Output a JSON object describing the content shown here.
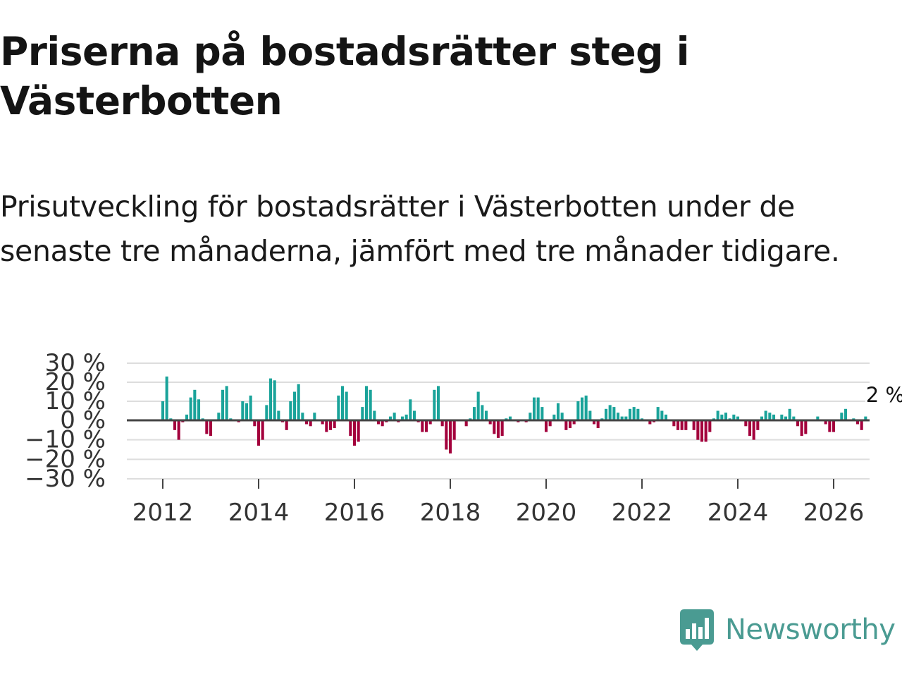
{
  "title": "Priserna på bostadsrätter steg i Västerbotten",
  "subtitle": "Prisutveckling för bostadsrätter i Västerbotten under de senaste tre månaderna, jämfört med tre månader tidigare.",
  "logo": {
    "text": "Newsworthy",
    "color": "#4a9b92",
    "icon": "newsworthy-bar-chart-icon"
  },
  "colors": {
    "positive": "#1aa39a",
    "negative": "#a3003c",
    "grid": "#dddddd",
    "zero_line": "#444444",
    "text": "#333333"
  },
  "chart_data": {
    "type": "bar",
    "title": "Priserna på bostadsrätter steg i Västerbotten",
    "ylabel": "",
    "xlabel": "",
    "ylim": [
      -30,
      30
    ],
    "y_ticks": [
      30,
      20,
      10,
      0,
      -10,
      -20,
      -30
    ],
    "y_tick_labels": [
      "30 %",
      "20 %",
      "10 %",
      "0 %",
      "−10 %",
      "−20 %",
      "−30 %"
    ],
    "x_range": [
      2011.25,
      2026.75
    ],
    "x_ticks": [
      2012,
      2014,
      2016,
      2018,
      2020,
      2022,
      2024,
      2026
    ],
    "x_tick_labels": [
      "2012",
      "2014",
      "2016",
      "2018",
      "2020",
      "2022",
      "2024",
      "2026"
    ],
    "start_year": 2012,
    "start_month": 1,
    "last_value_label": "2 %",
    "values": [
      10,
      23,
      1,
      -5,
      -10,
      -1,
      3,
      12,
      16,
      11,
      1,
      -7,
      -8,
      0,
      4,
      16,
      18,
      1,
      0,
      -1,
      10,
      9,
      13,
      -3,
      -13,
      -10,
      8,
      22,
      21,
      5,
      -1,
      -5,
      10,
      15,
      19,
      4,
      -2,
      -3,
      4,
      0,
      -2,
      -6,
      -5,
      -4,
      13,
      18,
      15,
      -8,
      -13,
      -11,
      7,
      18,
      16,
      5,
      -2,
      -3,
      -1,
      2,
      4,
      -1,
      2,
      3,
      11,
      5,
      -1,
      -6,
      -6,
      -2,
      16,
      18,
      -3,
      -15,
      -17,
      -10,
      0,
      0,
      -3,
      1,
      7,
      15,
      8,
      5,
      -2,
      -7,
      -9,
      -8,
      1,
      2,
      0,
      -1,
      0,
      -1,
      4,
      12,
      12,
      7,
      -6,
      -3,
      3,
      9,
      4,
      -5,
      -4,
      -2,
      10,
      12,
      13,
      5,
      -2,
      -4,
      1,
      6,
      8,
      7,
      4,
      2,
      2,
      6,
      7,
      6,
      1,
      0,
      -2,
      -1,
      7,
      5,
      3,
      0,
      -3,
      -5,
      -5,
      -5,
      0,
      -5,
      -10,
      -11,
      -11,
      -6,
      1,
      5,
      3,
      4,
      1,
      3,
      2,
      0,
      -3,
      -8,
      -10,
      -5,
      2,
      5,
      4,
      3,
      0,
      3,
      2,
      6,
      2,
      -3,
      -8,
      -7,
      0,
      0,
      2,
      0,
      -2,
      -6,
      -6,
      0,
      4,
      6,
      0,
      1,
      -2,
      -5,
      2
    ]
  }
}
